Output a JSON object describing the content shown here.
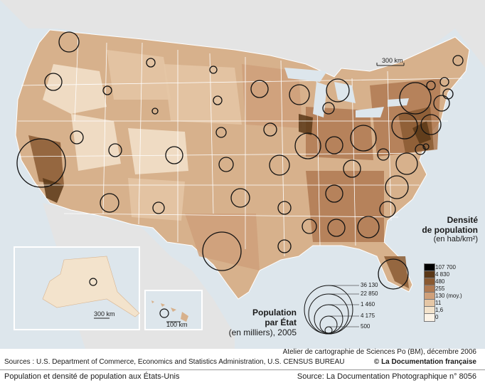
{
  "map": {
    "scale_main": "300 km",
    "scale_alaska": "300 km",
    "scale_hawaii": "100 km",
    "colors": {
      "ocean": "#dde6ec",
      "land_outside": "#e4e4e4",
      "state_border": "#ffffff",
      "circle_stroke": "#111111",
      "density_class_colors": [
        "#000000",
        "#5a3818",
        "#8a5a32",
        "#b07a52",
        "#cfa07a",
        "#e5c7a6",
        "#f3e3cc",
        "#fbf3e7"
      ]
    },
    "states_shown": [
      "contiguous United States",
      "Alaska",
      "Hawaii"
    ]
  },
  "legend_density": {
    "title": "Densité",
    "title2": "de population",
    "unit": "(en hab/km²)",
    "classes": [
      {
        "label": "107 700",
        "color": "#000000"
      },
      {
        "label": "4 830",
        "color": "#5a3818"
      },
      {
        "label": "480",
        "color": "#8a5a32"
      },
      {
        "label": "255",
        "color": "#b07a52"
      },
      {
        "label": "130 (moy.)",
        "color": "#cfa07a"
      },
      {
        "label": "11",
        "color": "#e5c7a6"
      },
      {
        "label": "1,6",
        "color": "#f3e3cc"
      },
      {
        "label": "0",
        "color": "#fbf3e7"
      }
    ]
  },
  "legend_population": {
    "title": "Population",
    "title2": "par État",
    "subtitle": "(en milliers), 2005",
    "circle_values": [
      "36 130",
      "22 850",
      "1 460",
      "4 175",
      "500"
    ]
  },
  "credits": {
    "atelier": "Atelier de cartographie de Sciences Po (BM), décembre 2006",
    "sources": "Sources : U.S. Department of Commerce, Economics and Statistics Administration, U.S. CENSUS BUREAU",
    "publisher": "© La Documentation française"
  },
  "footer": {
    "title": "Population et densité de population aux États-Unis",
    "source": "Source: La Documentation Photographique n° 8056"
  }
}
